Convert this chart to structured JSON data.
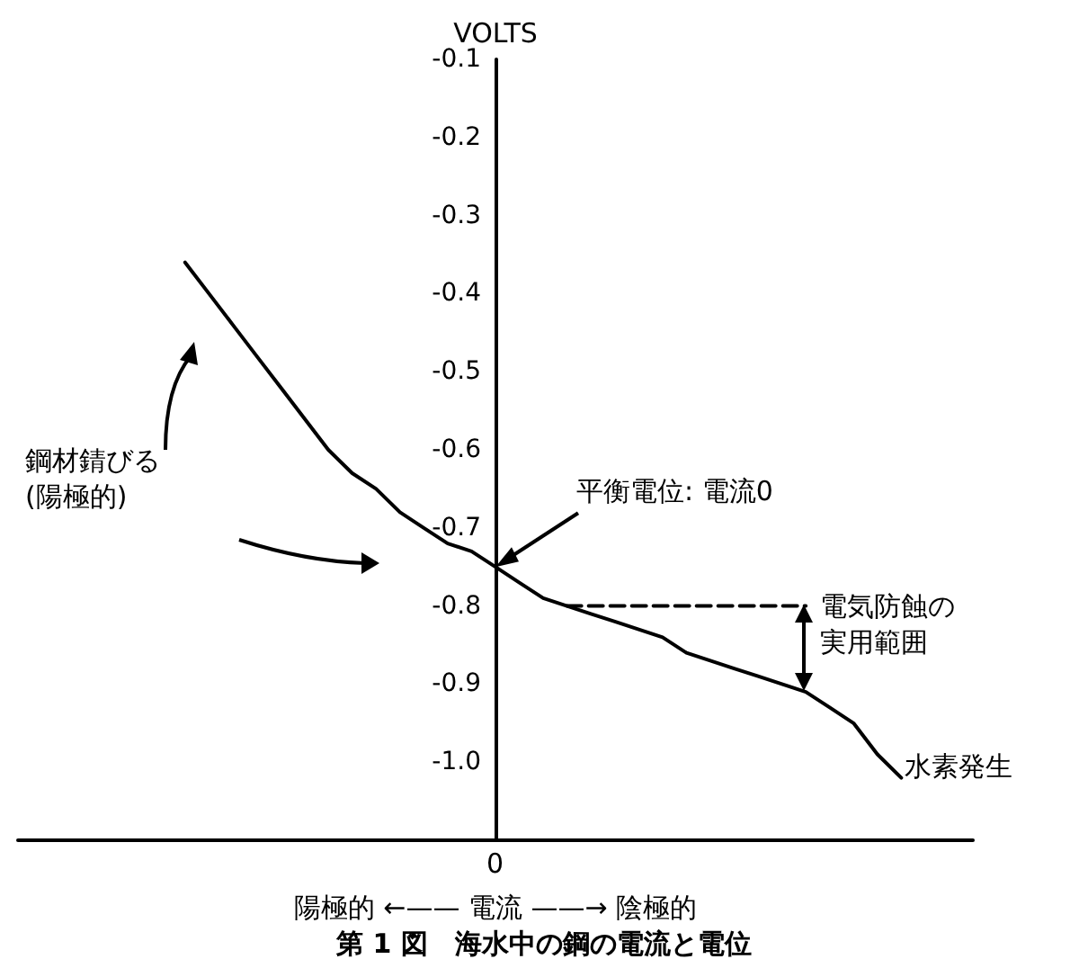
{
  "chart_data": {
    "type": "line",
    "title": "第 1 図　海水中の鋼の電流と電位",
    "xlabel": "陽極的 ←—— 電流 ——→ 陰極的",
    "ylabel": "VOLTS",
    "categories": [
      null,
      null,
      null,
      null,
      null,
      null,
      null,
      null,
      null,
      null,
      null,
      null,
      null,
      null,
      null,
      null,
      null,
      null,
      null,
      null,
      null,
      null,
      null,
      null,
      null,
      null,
      null,
      null,
      null,
      null,
      null,
      null,
      null,
      null,
      null,
      null,
      null,
      null,
      null,
      null,
      null
    ],
    "series": [
      {
        "color": "#000000",
        "line_style": "solid",
        "values": [
          null,
          null,
          null,
          null,
          null,
          null,
          null,
          -0.36,
          -0.4,
          -0.44,
          -0.48,
          -0.52,
          -0.56,
          -0.6,
          -0.63,
          -0.65,
          -0.68,
          -0.7,
          -0.72,
          -0.73,
          -0.75,
          -0.77,
          -0.79,
          -0.8,
          -0.81,
          -0.82,
          -0.83,
          -0.84,
          -0.86,
          -0.87,
          -0.88,
          -0.89,
          -0.9,
          -0.91,
          -0.93,
          -0.95,
          -0.99,
          -1.02,
          null,
          null,
          null
        ]
      },
      {
        "color": "#000000",
        "line_style": "dashed",
        "values": [
          null,
          null,
          null,
          null,
          null,
          null,
          null,
          null,
          null,
          null,
          null,
          null,
          null,
          null,
          null,
          null,
          null,
          null,
          null,
          null,
          null,
          null,
          null,
          -0.8,
          -0.8,
          -0.8,
          -0.8,
          -0.8,
          -0.8,
          -0.8,
          -0.8,
          -0.8,
          -0.8,
          -0.8,
          null,
          null,
          null,
          null,
          null,
          null,
          null
        ]
      }
    ],
    "ylim": [
      -1.1,
      -0.1
    ],
    "yticks": [
      -0.1,
      -0.2,
      -0.3,
      -0.4,
      -0.5,
      -0.6,
      -0.7,
      -0.8,
      -0.9,
      {
        "value": -1.0,
        "label": "-1.0"
      }
    ],
    "annotations": [
      "平衡電位: 電流0",
      "電気防蝕の実用範囲",
      "水素発生",
      "鋼材錆びる(陽極的)",
      "0"
    ],
    "grid": false,
    "marker": "none"
  }
}
